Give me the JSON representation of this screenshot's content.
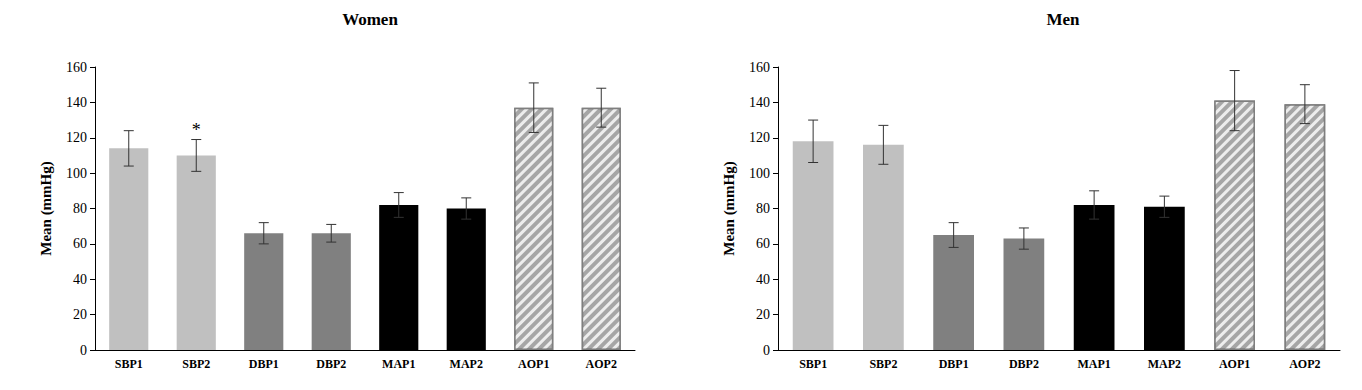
{
  "chart_data": [
    {
      "type": "bar",
      "title": "Women",
      "ylabel": "Mean (mmHg)",
      "categories": [
        "SBP1",
        "SBP2",
        "DBP1",
        "DBP2",
        "MAP1",
        "MAP2",
        "AOP1",
        "AOP2"
      ],
      "values": [
        114,
        110,
        66,
        66,
        82,
        80,
        137,
        137
      ],
      "errors": [
        10,
        9,
        6,
        5,
        7,
        6,
        14,
        11
      ],
      "colors": [
        "#c0c0c0",
        "#c0c0c0",
        "#808080",
        "#808080",
        "#000000",
        "#000000",
        "#a6a6a6",
        "#a6a6a6"
      ],
      "annotations": [
        {
          "category": "SBP2",
          "text": "*"
        }
      ],
      "ylim": [
        0,
        160
      ],
      "yticks": [
        0,
        20,
        40,
        60,
        80,
        100,
        120,
        140,
        160
      ],
      "grid": false
    },
    {
      "type": "bar",
      "title": "Men",
      "ylabel": "Mean (mmHg)",
      "categories": [
        "SBP1",
        "SBP2",
        "DBP1",
        "DBP2",
        "MAP1",
        "MAP2",
        "AOP1",
        "AOP2"
      ],
      "values": [
        118,
        116,
        65,
        63,
        82,
        81,
        141,
        139
      ],
      "errors": [
        12,
        11,
        7,
        6,
        8,
        6,
        17,
        11
      ],
      "colors": [
        "#c0c0c0",
        "#c0c0c0",
        "#808080",
        "#808080",
        "#000000",
        "#000000",
        "#a6a6a6",
        "#a6a6a6"
      ],
      "annotations": [],
      "ylim": [
        0,
        160
      ],
      "yticks": [
        0,
        20,
        40,
        60,
        80,
        100,
        120,
        140,
        160
      ],
      "grid": false
    }
  ]
}
